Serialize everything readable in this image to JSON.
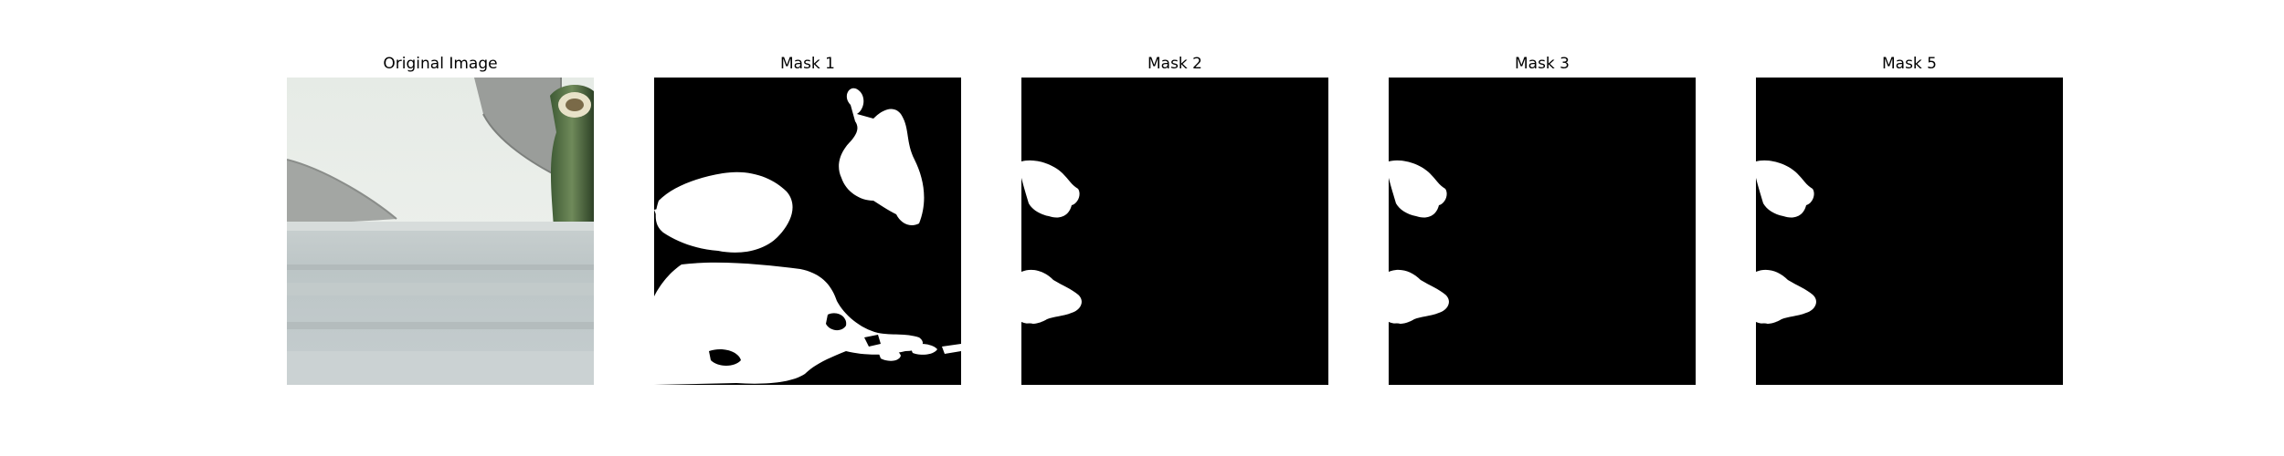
{
  "panels": [
    {
      "title": "Original Image"
    },
    {
      "title": "Mask 1"
    },
    {
      "title": "Mask 2"
    },
    {
      "title": "Mask 3"
    },
    {
      "title": "Mask 5"
    }
  ]
}
